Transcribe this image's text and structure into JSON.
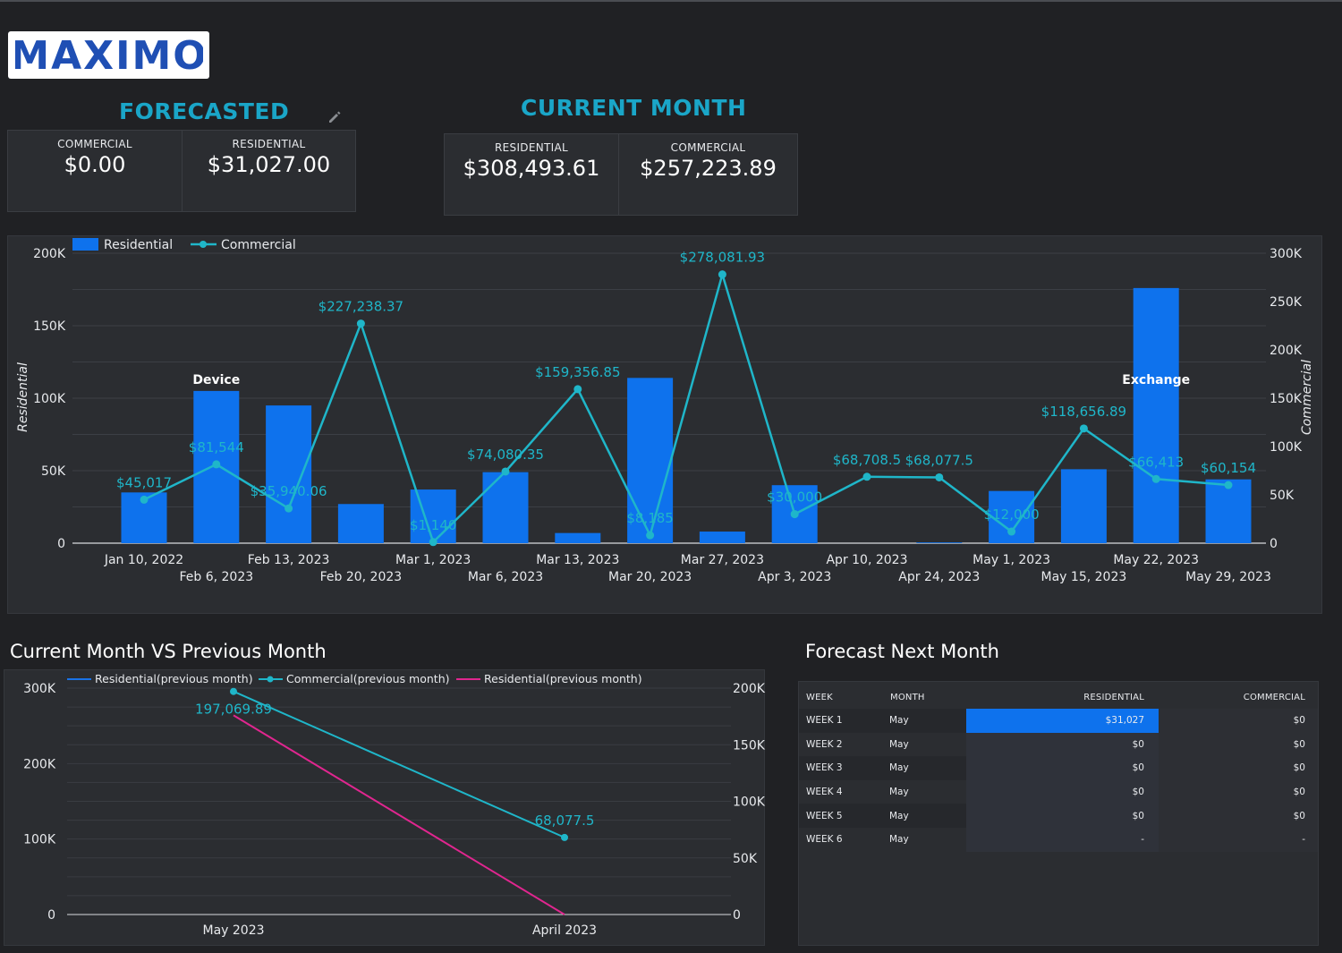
{
  "logo": {
    "text": "MAXIMO",
    "color": "#1f4fb4"
  },
  "forecasted": {
    "title": "FORECASTED",
    "edit_icon": "pencil-icon",
    "commercial_label": "COMMERCIAL",
    "commercial_value": "$0.00",
    "residential_label": "RESIDENTIAL",
    "residential_value": "$31,027.00"
  },
  "current_month": {
    "title": "CURRENT MONTH",
    "residential_label": "RESIDENTIAL",
    "residential_value": "$308,493.61",
    "commercial_label": "COMMERCIAL",
    "commercial_value": "$257,223.89"
  },
  "colors": {
    "bar": "#0e72ed",
    "line": "#1fb6c9",
    "pink": "#e0268f",
    "accent": "#1aa6c8"
  },
  "chart_data": [
    {
      "type": "bar",
      "legend": [
        "Residential",
        "Commercial"
      ],
      "legend_placement": "top-left",
      "ylabel": "Residential",
      "y2label": "Commercial",
      "ylim": [
        0,
        200000
      ],
      "y2lim": [
        0,
        300000
      ],
      "yticks": [
        "0",
        "50K",
        "100K",
        "150K",
        "200K"
      ],
      "y2ticks": [
        "0",
        "50K",
        "100K",
        "150K",
        "200K",
        "250K",
        "300K"
      ],
      "categories": [
        "Jan 10, 2022",
        "Feb 6, 2023",
        "Feb 13, 2023",
        "Feb 20, 2023",
        "Mar 1, 2023",
        "Mar 6, 2023",
        "Mar 13, 2023",
        "Mar 20, 2023",
        "Mar 27, 2023",
        "Apr 3, 2023",
        "Apr 10, 2023",
        "Apr 24, 2023",
        "May 1, 2023",
        "May 15, 2023",
        "May 22, 2023",
        "May 29, 2023"
      ],
      "series": [
        {
          "name": "Residential",
          "type": "bar",
          "values": [
            35000,
            105000,
            95000,
            27000,
            37000,
            49000,
            7000,
            114000,
            8000,
            40000,
            0,
            500,
            36000,
            51000,
            176000,
            44000
          ]
        },
        {
          "name": "Commercial",
          "type": "line",
          "values": [
            45017,
            81544,
            35940.06,
            227238.37,
            1140,
            74080.35,
            159356.85,
            8185,
            278081.93,
            30000,
            68708.5,
            68077.5,
            12000,
            118656.89,
            66413,
            60154
          ],
          "labels": [
            "$45,017",
            "$81,544",
            "$35,940.06",
            "$227,238.37",
            "$1,140",
            "$74,080.35",
            "$159,356.85",
            "$8,185",
            "$278,081.93",
            "$30,000",
            "$68,708.5",
            "$68,077.5",
            "$12,000",
            "$118,656.89",
            "$66,413",
            "$60,154"
          ]
        }
      ],
      "annotations": [
        {
          "text": "Device",
          "category": "Feb 6, 2023"
        },
        {
          "text": "Exchange",
          "category": "May 22, 2023"
        }
      ]
    },
    {
      "type": "line",
      "title": "Current Month VS Previous Month",
      "legend": [
        "Residential(previous month)",
        "Commercial(previous month)",
        "Residential(previous month)"
      ],
      "legend_placement": "top",
      "categories": [
        "May 2023",
        "April 2023"
      ],
      "ylim": [
        0,
        300000
      ],
      "y2lim": [
        0,
        200000
      ],
      "yticks": [
        "0",
        "100K",
        "200K",
        "300K"
      ],
      "y2ticks": [
        "0",
        "50K",
        "100K",
        "150K",
        "200K"
      ],
      "series": [
        {
          "name": "Residential(previous month)",
          "axis": "left",
          "values": [
            null,
            null
          ]
        },
        {
          "name": "Commercial(previous month)",
          "axis": "right",
          "values": [
            197069.89,
            68077.5
          ],
          "labels": [
            "197,069.89",
            "68,077.5"
          ]
        },
        {
          "name": "Residential(previous month)",
          "axis": "left",
          "values": [
            264000,
            0
          ]
        }
      ]
    }
  ],
  "forecast": {
    "title": "Forecast Next Month",
    "headers": [
      "WEEK",
      "MONTH",
      "RESIDENTIAL",
      "COMMERCIAL"
    ],
    "rows": [
      {
        "week": "WEEK 1",
        "month": "May",
        "residential": "$31,027",
        "commercial": "$0",
        "residential_value": 31027
      },
      {
        "week": "WEEK 2",
        "month": "May",
        "residential": "$0",
        "commercial": "$0",
        "residential_value": 0
      },
      {
        "week": "WEEK 3",
        "month": "May",
        "residential": "$0",
        "commercial": "$0",
        "residential_value": 0
      },
      {
        "week": "WEEK 4",
        "month": "May",
        "residential": "$0",
        "commercial": "$0",
        "residential_value": 0
      },
      {
        "week": "WEEK 5",
        "month": "May",
        "residential": "$0",
        "commercial": "$0",
        "residential_value": 0
      },
      {
        "week": "WEEK 6",
        "month": "May",
        "residential": "-",
        "commercial": "-",
        "residential_value": 0
      }
    ]
  }
}
